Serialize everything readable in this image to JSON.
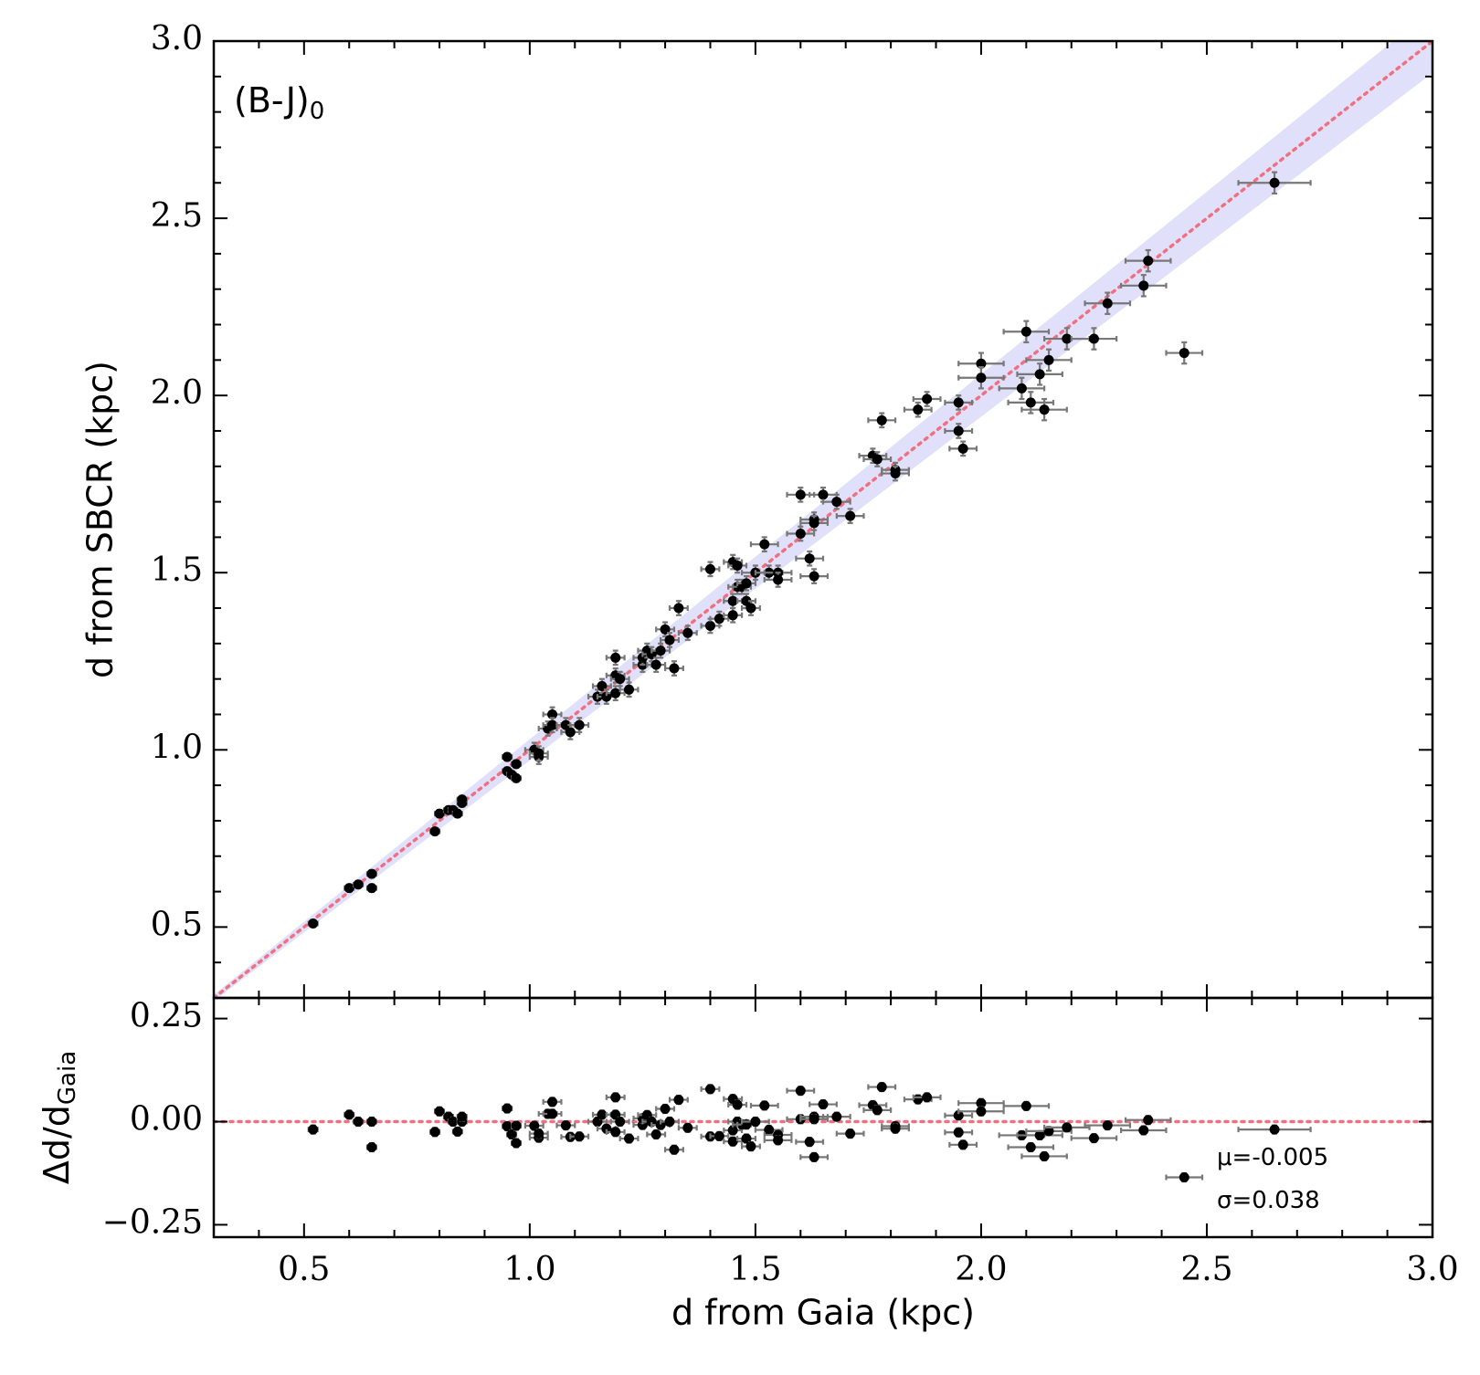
{
  "chart_data": [
    {
      "type": "scatter",
      "ylabel": "d from SBCR (kpc)",
      "annotation": "(B-J)",
      "annotation_sub": "0",
      "xlim": [
        0.3,
        3.0
      ],
      "ylim": [
        0.3,
        3.0
      ],
      "xticks": [
        0.5,
        {
          "value": 1,
          "label": "1.0"
        },
        1.5,
        {
          "value": 2,
          "label": "2.0"
        },
        2.5,
        {
          "value": 3,
          "label": "3.0"
        }
      ],
      "yticks": [
        0.5,
        {
          "value": 1,
          "label": "1.0"
        },
        1.5,
        {
          "value": 2,
          "label": "2.0"
        },
        2.5,
        {
          "value": 3,
          "label": "3.0"
        }
      ],
      "xminorticks": [
        0.4,
        0.6,
        0.7,
        0.8,
        0.9,
        1.1,
        1.2,
        1.3,
        1.4,
        1.6,
        1.7,
        1.8,
        1.9,
        2.1,
        2.2,
        2.3,
        2.4,
        2.6,
        2.7,
        2.8,
        2.9
      ],
      "yminorticks": [
        0.4,
        0.6,
        0.7,
        0.8,
        0.9,
        1.1,
        1.2,
        1.3,
        1.4,
        1.6,
        1.7,
        1.8,
        1.9,
        2.1,
        2.2,
        2.3,
        2.4,
        2.6,
        2.7,
        2.8,
        2.9
      ],
      "identity_line": true,
      "band_relative_width": 0.03,
      "color": "#000000",
      "errorbar_color": "#777777",
      "band_color": "#e0e0fb",
      "line_color": "#f07080",
      "x": [
        0.52,
        0.6,
        0.62,
        0.65,
        0.65,
        0.79,
        0.8,
        0.82,
        0.83,
        0.84,
        0.85,
        0.85,
        0.95,
        0.95,
        0.96,
        0.97,
        0.97,
        1.01,
        1.02,
        1.02,
        1.04,
        1.05,
        1.05,
        1.08,
        1.09,
        1.11,
        1.15,
        1.16,
        1.17,
        1.19,
        1.19,
        1.19,
        1.2,
        1.22,
        1.25,
        1.25,
        1.26,
        1.27,
        1.28,
        1.29,
        1.3,
        1.31,
        1.32,
        1.33,
        1.35,
        1.4,
        1.4,
        1.42,
        1.45,
        1.45,
        1.45,
        1.46,
        1.46,
        1.47,
        1.48,
        1.48,
        1.49,
        1.5,
        1.52,
        1.53,
        1.55,
        1.55,
        1.6,
        1.6,
        1.62,
        1.63,
        1.63,
        1.63,
        1.65,
        1.68,
        1.71,
        1.76,
        1.77,
        1.78,
        1.81,
        1.81,
        1.86,
        1.88,
        1.95,
        1.95,
        1.96,
        2.0,
        2.0,
        2.09,
        2.1,
        2.11,
        2.13,
        2.14,
        2.15,
        2.19,
        2.25,
        2.28,
        2.36,
        2.37,
        2.45,
        2.65
      ],
      "y": [
        0.51,
        0.61,
        0.62,
        0.65,
        0.61,
        0.77,
        0.82,
        0.83,
        0.83,
        0.82,
        0.85,
        0.86,
        0.98,
        0.94,
        0.93,
        0.96,
        0.92,
        1.0,
        0.98,
        0.99,
        1.06,
        1.1,
        1.07,
        1.07,
        1.05,
        1.07,
        1.15,
        1.18,
        1.15,
        1.16,
        1.21,
        1.26,
        1.2,
        1.17,
        1.24,
        1.26,
        1.28,
        1.27,
        1.24,
        1.28,
        1.34,
        1.31,
        1.23,
        1.4,
        1.33,
        1.51,
        1.35,
        1.37,
        1.38,
        1.42,
        1.53,
        1.52,
        1.46,
        1.46,
        1.47,
        1.42,
        1.4,
        1.5,
        1.58,
        1.5,
        1.5,
        1.48,
        1.61,
        1.72,
        1.54,
        1.65,
        1.64,
        1.49,
        1.72,
        1.7,
        1.66,
        1.83,
        1.82,
        1.93,
        1.79,
        1.78,
        1.96,
        1.99,
        1.98,
        1.9,
        1.85,
        2.09,
        2.05,
        2.02,
        2.18,
        1.98,
        2.06,
        1.96,
        2.1,
        2.16,
        2.16,
        2.26,
        2.31,
        2.38,
        2.12,
        2.6
      ],
      "xerr": [
        0.01,
        0.01,
        0.01,
        0.01,
        0.01,
        0.01,
        0.01,
        0.01,
        0.01,
        0.01,
        0.01,
        0.01,
        0.01,
        0.01,
        0.01,
        0.01,
        0.01,
        0.02,
        0.02,
        0.02,
        0.02,
        0.02,
        0.02,
        0.02,
        0.02,
        0.02,
        0.02,
        0.02,
        0.02,
        0.02,
        0.02,
        0.02,
        0.02,
        0.02,
        0.02,
        0.02,
        0.02,
        0.02,
        0.02,
        0.02,
        0.02,
        0.02,
        0.02,
        0.02,
        0.02,
        0.02,
        0.02,
        0.02,
        0.02,
        0.02,
        0.02,
        0.02,
        0.02,
        0.02,
        0.02,
        0.02,
        0.02,
        0.03,
        0.03,
        0.03,
        0.03,
        0.03,
        0.03,
        0.03,
        0.03,
        0.03,
        0.03,
        0.03,
        0.03,
        0.03,
        0.03,
        0.03,
        0.03,
        0.03,
        0.03,
        0.03,
        0.03,
        0.03,
        0.03,
        0.03,
        0.03,
        0.05,
        0.05,
        0.05,
        0.05,
        0.05,
        0.05,
        0.05,
        0.05,
        0.05,
        0.05,
        0.05,
        0.05,
        0.05,
        0.04,
        0.08
      ],
      "yerr": [
        0.01,
        0.01,
        0.01,
        0.01,
        0.01,
        0.01,
        0.01,
        0.01,
        0.01,
        0.01,
        0.01,
        0.01,
        0.01,
        0.01,
        0.01,
        0.01,
        0.01,
        0.02,
        0.02,
        0.02,
        0.02,
        0.02,
        0.02,
        0.02,
        0.02,
        0.02,
        0.02,
        0.02,
        0.02,
        0.02,
        0.02,
        0.02,
        0.02,
        0.02,
        0.02,
        0.02,
        0.02,
        0.02,
        0.02,
        0.02,
        0.02,
        0.02,
        0.02,
        0.02,
        0.02,
        0.02,
        0.02,
        0.02,
        0.02,
        0.02,
        0.02,
        0.02,
        0.02,
        0.02,
        0.02,
        0.02,
        0.02,
        0.02,
        0.02,
        0.02,
        0.02,
        0.02,
        0.02,
        0.02,
        0.02,
        0.02,
        0.02,
        0.02,
        0.02,
        0.02,
        0.02,
        0.02,
        0.02,
        0.02,
        0.02,
        0.02,
        0.02,
        0.02,
        0.02,
        0.02,
        0.02,
        0.03,
        0.03,
        0.03,
        0.03,
        0.03,
        0.03,
        0.03,
        0.03,
        0.03,
        0.03,
        0.03,
        0.03,
        0.03,
        0.03,
        0.03
      ]
    },
    {
      "type": "scatter",
      "xlabel": "d from Gaia (kpc)",
      "ylabel": "Δd/d",
      "ylabel_sub": "Gaia",
      "xlim": [
        0.3,
        3.0
      ],
      "ylim": [
        -0.28,
        0.3
      ],
      "xticks": [
        0.5,
        {
          "value": 1,
          "label": "1.0"
        },
        1.5,
        {
          "value": 2,
          "label": "2.0"
        },
        2.5,
        {
          "value": 3,
          "label": "3.0"
        }
      ],
      "yticks": [
        0.25,
        {
          "value": 0,
          "label": "0.00"
        },
        {
          "value": -0.25,
          "label": "−0.25"
        }
      ],
      "xminorticks": [
        0.4,
        0.6,
        0.7,
        0.8,
        0.9,
        1.1,
        1.2,
        1.3,
        1.4,
        1.6,
        1.7,
        1.8,
        1.9,
        2.1,
        2.2,
        2.3,
        2.4,
        2.6,
        2.7,
        2.8,
        2.9
      ],
      "hline": 0,
      "color": "#000000",
      "errorbar_color": "#777777",
      "line_color": "#f07080",
      "stats": [
        {
          "label": "μ=",
          "value": -0.005
        },
        {
          "label": "σ=",
          "value": 0.038
        }
      ],
      "x": [
        0.52,
        0.6,
        0.62,
        0.65,
        0.65,
        0.79,
        0.8,
        0.82,
        0.83,
        0.84,
        0.85,
        0.85,
        0.95,
        0.95,
        0.96,
        0.97,
        0.97,
        1.01,
        1.02,
        1.02,
        1.04,
        1.05,
        1.05,
        1.08,
        1.09,
        1.11,
        1.15,
        1.16,
        1.17,
        1.19,
        1.19,
        1.19,
        1.2,
        1.22,
        1.25,
        1.25,
        1.26,
        1.27,
        1.28,
        1.29,
        1.3,
        1.31,
        1.32,
        1.33,
        1.35,
        1.4,
        1.4,
        1.42,
        1.45,
        1.45,
        1.45,
        1.46,
        1.46,
        1.47,
        1.48,
        1.48,
        1.49,
        1.5,
        1.52,
        1.53,
        1.55,
        1.55,
        1.6,
        1.6,
        1.62,
        1.63,
        1.63,
        1.63,
        1.65,
        1.68,
        1.71,
        1.76,
        1.77,
        1.78,
        1.81,
        1.81,
        1.86,
        1.88,
        1.95,
        1.95,
        1.96,
        2.0,
        2.0,
        2.09,
        2.1,
        2.11,
        2.13,
        2.14,
        2.15,
        2.19,
        2.25,
        2.28,
        2.36,
        2.37,
        2.45,
        2.65
      ],
      "y": [
        -0.019,
        0.017,
        0,
        0,
        -0.062,
        -0.025,
        0.025,
        0.012,
        0,
        -0.024,
        0,
        0.012,
        0.032,
        -0.011,
        -0.031,
        -0.01,
        -0.052,
        -0.01,
        -0.039,
        -0.029,
        0.019,
        0.048,
        0.019,
        -0.009,
        -0.037,
        -0.036,
        0,
        0.017,
        -0.017,
        -0.025,
        0.017,
        0.059,
        0,
        -0.041,
        -0.008,
        0.008,
        0.016,
        0,
        -0.031,
        -0.008,
        0.031,
        0,
        -0.068,
        0.053,
        -0.015,
        0.079,
        -0.036,
        -0.035,
        -0.048,
        -0.021,
        0.055,
        0.041,
        0,
        -0.007,
        -0.007,
        -0.041,
        -0.06,
        0,
        0.039,
        -0.02,
        -0.032,
        -0.045,
        0.006,
        0.075,
        -0.049,
        0.012,
        0.006,
        -0.086,
        0.042,
        0.012,
        -0.029,
        0.04,
        0.028,
        0.084,
        -0.011,
        -0.017,
        0.054,
        0.059,
        0.015,
        -0.026,
        -0.056,
        0.045,
        0.025,
        -0.033,
        0.038,
        -0.062,
        -0.033,
        -0.084,
        -0.023,
        -0.014,
        -0.04,
        -0.009,
        -0.021,
        0.004,
        -0.135,
        -0.019
      ],
      "xerr": [
        0.01,
        0.01,
        0.01,
        0.01,
        0.01,
        0.01,
        0.01,
        0.01,
        0.01,
        0.01,
        0.01,
        0.01,
        0.01,
        0.01,
        0.01,
        0.01,
        0.01,
        0.02,
        0.02,
        0.02,
        0.02,
        0.02,
        0.02,
        0.02,
        0.02,
        0.02,
        0.02,
        0.02,
        0.02,
        0.02,
        0.02,
        0.02,
        0.02,
        0.02,
        0.02,
        0.02,
        0.02,
        0.02,
        0.02,
        0.02,
        0.02,
        0.02,
        0.02,
        0.02,
        0.02,
        0.02,
        0.02,
        0.02,
        0.02,
        0.02,
        0.02,
        0.02,
        0.02,
        0.02,
        0.02,
        0.02,
        0.02,
        0.03,
        0.03,
        0.03,
        0.03,
        0.03,
        0.03,
        0.03,
        0.03,
        0.03,
        0.03,
        0.03,
        0.03,
        0.03,
        0.03,
        0.03,
        0.03,
        0.03,
        0.03,
        0.03,
        0.03,
        0.03,
        0.03,
        0.03,
        0.03,
        0.05,
        0.05,
        0.05,
        0.05,
        0.05,
        0.05,
        0.05,
        0.05,
        0.05,
        0.05,
        0.05,
        0.05,
        0.05,
        0.04,
        0.08
      ],
      "yerr": [
        0.01,
        0.01,
        0.01,
        0.01,
        0.01,
        0.01,
        0.01,
        0.01,
        0.01,
        0.01,
        0.01,
        0.01,
        0.01,
        0.01,
        0.01,
        0.01,
        0.01,
        0.01,
        0.01,
        0.01,
        0.01,
        0.01,
        0.01,
        0.01,
        0.01,
        0.01,
        0.01,
        0.01,
        0.01,
        0.01,
        0.01,
        0.01,
        0.01,
        0.01,
        0.01,
        0.01,
        0.01,
        0.01,
        0.01,
        0.01,
        0.01,
        0.01,
        0.01,
        0.01,
        0.01,
        0.01,
        0.01,
        0.01,
        0.01,
        0.01,
        0.01,
        0.01,
        0.01,
        0.01,
        0.01,
        0.01,
        0.01,
        0.01,
        0.01,
        0.01,
        0.01,
        0.01,
        0.01,
        0.01,
        0.01,
        0.01,
        0.01,
        0.01,
        0.01,
        0.01,
        0.01,
        0.01,
        0.01,
        0.01,
        0.01,
        0.01,
        0.01,
        0.01,
        0.01,
        0.01,
        0.01,
        0.01,
        0.01,
        0.01,
        0.01,
        0.01,
        0.01,
        0.01,
        0.01,
        0.01,
        0.01,
        0.01,
        0.01,
        0.01,
        0.01,
        0.01
      ]
    }
  ]
}
